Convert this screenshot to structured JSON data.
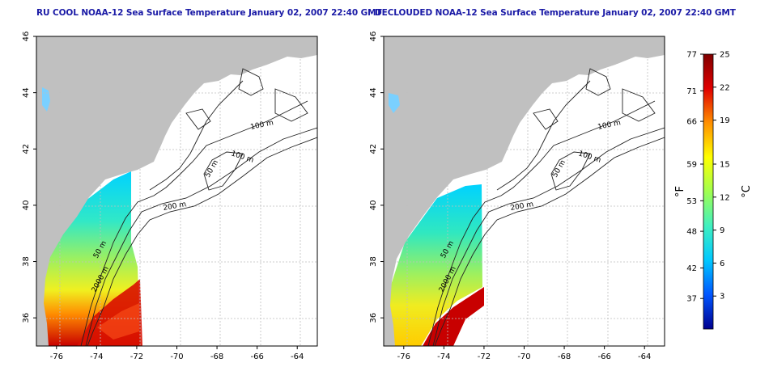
{
  "panels": [
    {
      "title": "RU COOL NOAA-12 Sea Surface Temperature January 02, 2007 22:40 GMT"
    },
    {
      "title": "DECLOUDED NOAA-12 Sea Surface Temperature January 02, 2007 22:40 GMT"
    }
  ],
  "chart_data": [
    {
      "type": "heatmap",
      "title": "RU COOL NOAA-12 Sea Surface Temperature January 02, 2007 22:40 GMT",
      "xlim": [
        -77,
        -63
      ],
      "ylim": [
        35,
        46
      ],
      "x_ticks": [
        -76,
        -74,
        -72,
        -70,
        -68,
        -66,
        -64
      ],
      "y_ticks": [
        36,
        38,
        40,
        42,
        44,
        46
      ],
      "grid": true,
      "contour_labels": [
        "100 m",
        "100 m",
        "50 m",
        "200 m",
        "50 m",
        "2000 m"
      ]
    },
    {
      "type": "heatmap",
      "title": "DECLOUDED NOAA-12 Sea Surface Temperature January 02, 2007 22:40 GMT",
      "xlim": [
        -77,
        -63
      ],
      "ylim": [
        35,
        46
      ],
      "x_ticks": [
        -76,
        -74,
        -72,
        -70,
        -68,
        -66,
        -64
      ],
      "y_ticks": [
        36,
        38,
        40,
        42,
        44,
        46
      ],
      "grid": true,
      "contour_labels": [
        "100 m",
        "100 m",
        "50 m",
        "200 m",
        "50 m",
        "2000 m"
      ]
    }
  ],
  "colorbar": {
    "fahrenheit_label": "°F",
    "celsius_label": "°C",
    "fahrenheit_ticks": [
      "77",
      "71",
      "66",
      "59",
      "53",
      "48",
      "42",
      "37"
    ],
    "celsius_ticks": [
      "25",
      "22",
      "19",
      "15",
      "12",
      "9",
      "6",
      "3"
    ],
    "range_c": [
      0,
      25
    ],
    "colors": [
      "#00008f",
      "#0055ff",
      "#00c8ff",
      "#40f0c0",
      "#a0ff50",
      "#ffff00",
      "#ff9000",
      "#e00000",
      "#800000"
    ]
  },
  "colors": {
    "land": "#c0c0c0",
    "title": "#1a1aa6",
    "grid": "#bfbfbf"
  }
}
